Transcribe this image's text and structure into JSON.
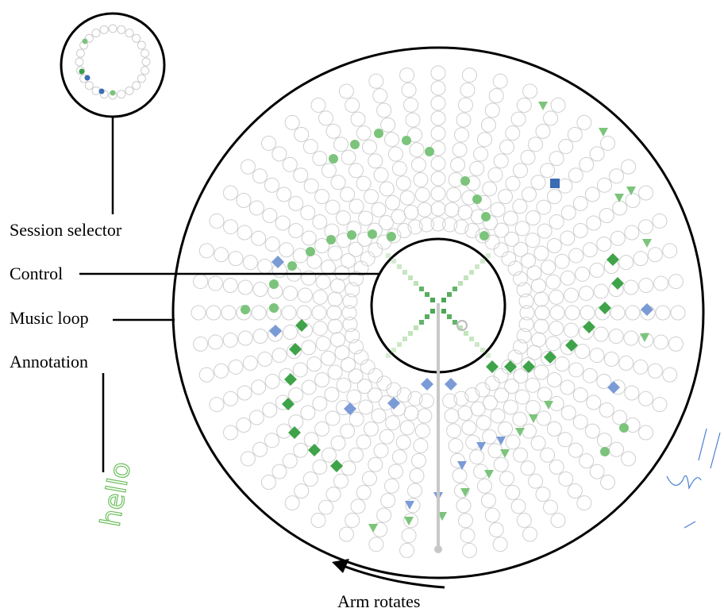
{
  "labels": {
    "session_selector": "Session selector",
    "control": "Control",
    "music_loop": "Music loop",
    "annotation": "Annotation",
    "arm_rotates": "Arm rotates"
  },
  "annotation_text": "hello"
}
